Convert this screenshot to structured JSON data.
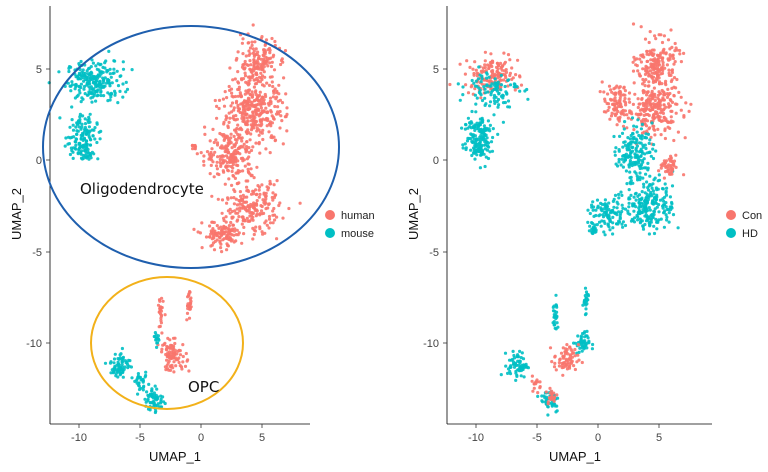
{
  "chart_data": [
    {
      "type": "scatter",
      "xlabel": "UMAP_1",
      "ylabel": "UMAP_2",
      "xlim": [
        -12.5,
        9
      ],
      "ylim": [
        -14.2,
        7.2
      ],
      "xticks": [
        -10,
        -5,
        0,
        5
      ],
      "yticks": [
        5,
        0,
        -5,
        -10
      ],
      "grid": false,
      "legend_placement": "right",
      "legend": [
        {
          "label": "human",
          "color": "#F8766D"
        },
        {
          "label": "mouse",
          "color": "#00BFC4"
        }
      ],
      "annotations": [
        {
          "text": "Oligodendrocyte",
          "x": -10.2,
          "y": -1.5,
          "shape": "ellipse",
          "center": [
            -3.2,
            0.7
          ],
          "radii": [
            12.2,
            6.0
          ],
          "color": "#1f5fae"
        },
        {
          "text": "OPC",
          "x": -1.0,
          "y": -12.7,
          "shape": "ellipse",
          "center": [
            -3.0,
            -10.6
          ],
          "radii": [
            6.3,
            3.6
          ],
          "color": "#f2b11a"
        }
      ],
      "clusters": [
        {
          "series": "mouse",
          "center": [
            -8.7,
            4.3
          ],
          "spread": [
            2.3,
            1.1
          ],
          "points": 230
        },
        {
          "series": "mouse",
          "center": [
            -9.8,
            1.4
          ],
          "spread": [
            1.3,
            1.1
          ],
          "points": 110
        },
        {
          "series": "mouse",
          "center": [
            -9.5,
            0.4
          ],
          "spread": [
            0.8,
            0.6
          ],
          "points": 40
        },
        {
          "series": "human",
          "center": [
            4.6,
            5.3
          ],
          "spread": [
            1.6,
            1.4
          ],
          "points": 170
        },
        {
          "series": "human",
          "center": [
            4.3,
            2.6
          ],
          "spread": [
            2.6,
            1.7
          ],
          "points": 330
        },
        {
          "series": "human",
          "center": [
            2.4,
            0.3
          ],
          "spread": [
            2.0,
            1.4
          ],
          "points": 190
        },
        {
          "series": "human",
          "center": [
            4.2,
            -2.6
          ],
          "spread": [
            2.2,
            1.4
          ],
          "points": 200
        },
        {
          "series": "human",
          "center": [
            1.8,
            -4.1
          ],
          "spread": [
            1.6,
            0.8
          ],
          "points": 110
        },
        {
          "series": "human",
          "center": [
            -0.6,
            0.7
          ],
          "spread": [
            0.25,
            0.25
          ],
          "points": 10
        },
        {
          "series": "human",
          "center": [
            -3.3,
            -8.5
          ],
          "spread": [
            0.2,
            1.1
          ],
          "points": 25
        },
        {
          "series": "human",
          "center": [
            -1.0,
            -7.9
          ],
          "spread": [
            0.2,
            0.9
          ],
          "points": 25
        },
        {
          "series": "human",
          "center": [
            -2.3,
            -10.7
          ],
          "spread": [
            1.1,
            0.8
          ],
          "points": 90
        },
        {
          "series": "mouse",
          "center": [
            -6.6,
            -11.2
          ],
          "spread": [
            0.8,
            0.7
          ],
          "points": 70
        },
        {
          "series": "mouse",
          "center": [
            -3.8,
            -13.1
          ],
          "spread": [
            0.8,
            0.7
          ],
          "points": 60
        },
        {
          "series": "mouse",
          "center": [
            -4.9,
            -12.2
          ],
          "spread": [
            0.5,
            0.5
          ],
          "points": 30
        },
        {
          "series": "mouse",
          "center": [
            -3.6,
            -9.8
          ],
          "spread": [
            0.25,
            0.3
          ],
          "points": 15
        }
      ]
    },
    {
      "type": "scatter",
      "xlabel": "UMAP_1",
      "ylabel": "UMAP_2",
      "xlim": [
        -12.5,
        9
      ],
      "ylim": [
        -14.2,
        7.2
      ],
      "xticks": [
        -10,
        -5,
        0,
        5
      ],
      "yticks": [
        5,
        0,
        -5,
        -10
      ],
      "grid": false,
      "legend_placement": "right",
      "legend": [
        {
          "label": "Con",
          "color": "#F8766D"
        },
        {
          "label": "HD",
          "color": "#00BFC4"
        }
      ],
      "clusters": [
        {
          "series": "Con",
          "center": [
            -8.7,
            4.6
          ],
          "spread": [
            2.2,
            1.0
          ],
          "points": 150
        },
        {
          "series": "HD",
          "center": [
            -8.6,
            3.9
          ],
          "spread": [
            2.1,
            1.0
          ],
          "points": 100
        },
        {
          "series": "HD",
          "center": [
            -9.9,
            1.4
          ],
          "spread": [
            1.3,
            1.1
          ],
          "points": 130
        },
        {
          "series": "HD",
          "center": [
            -9.5,
            0.4
          ],
          "spread": [
            0.8,
            0.6
          ],
          "points": 40
        },
        {
          "series": "Con",
          "center": [
            4.8,
            5.2
          ],
          "spread": [
            1.6,
            1.4
          ],
          "points": 190
        },
        {
          "series": "Con",
          "center": [
            4.6,
            2.8
          ],
          "spread": [
            2.2,
            1.4
          ],
          "points": 230
        },
        {
          "series": "Con",
          "center": [
            1.5,
            3.0
          ],
          "spread": [
            1.1,
            1.1
          ],
          "points": 90
        },
        {
          "series": "HD",
          "center": [
            3.0,
            0.5
          ],
          "spread": [
            1.4,
            1.4
          ],
          "points": 160
        },
        {
          "series": "HD",
          "center": [
            4.2,
            -2.4
          ],
          "spread": [
            2.0,
            1.5
          ],
          "points": 230
        },
        {
          "series": "HD",
          "center": [
            0.8,
            -3.0
          ],
          "spread": [
            1.5,
            0.9
          ],
          "points": 100
        },
        {
          "series": "Con",
          "center": [
            5.8,
            -0.4
          ],
          "spread": [
            0.8,
            0.6
          ],
          "points": 45
        },
        {
          "series": "HD",
          "center": [
            -0.4,
            -3.8
          ],
          "spread": [
            0.3,
            0.4
          ],
          "points": 15
        },
        {
          "series": "HD",
          "center": [
            -3.5,
            -8.6
          ],
          "spread": [
            0.2,
            1.0
          ],
          "points": 25
        },
        {
          "series": "HD",
          "center": [
            -1.0,
            -7.9
          ],
          "spread": [
            0.2,
            0.9
          ],
          "points": 25
        },
        {
          "series": "HD",
          "center": [
            -1.3,
            -10.0
          ],
          "spread": [
            0.6,
            0.6
          ],
          "points": 45
        },
        {
          "series": "Con",
          "center": [
            -2.6,
            -10.9
          ],
          "spread": [
            1.0,
            0.8
          ],
          "points": 70
        },
        {
          "series": "HD",
          "center": [
            -6.6,
            -11.2
          ],
          "spread": [
            0.8,
            0.7
          ],
          "points": 70
        },
        {
          "series": "HD",
          "center": [
            -3.9,
            -13.1
          ],
          "spread": [
            0.8,
            0.7
          ],
          "points": 45
        },
        {
          "series": "Con",
          "center": [
            -3.8,
            -12.9
          ],
          "spread": [
            0.5,
            0.5
          ],
          "points": 20
        },
        {
          "series": "Con",
          "center": [
            -5.0,
            -12.2
          ],
          "spread": [
            0.4,
            0.4
          ],
          "points": 15
        }
      ]
    }
  ]
}
